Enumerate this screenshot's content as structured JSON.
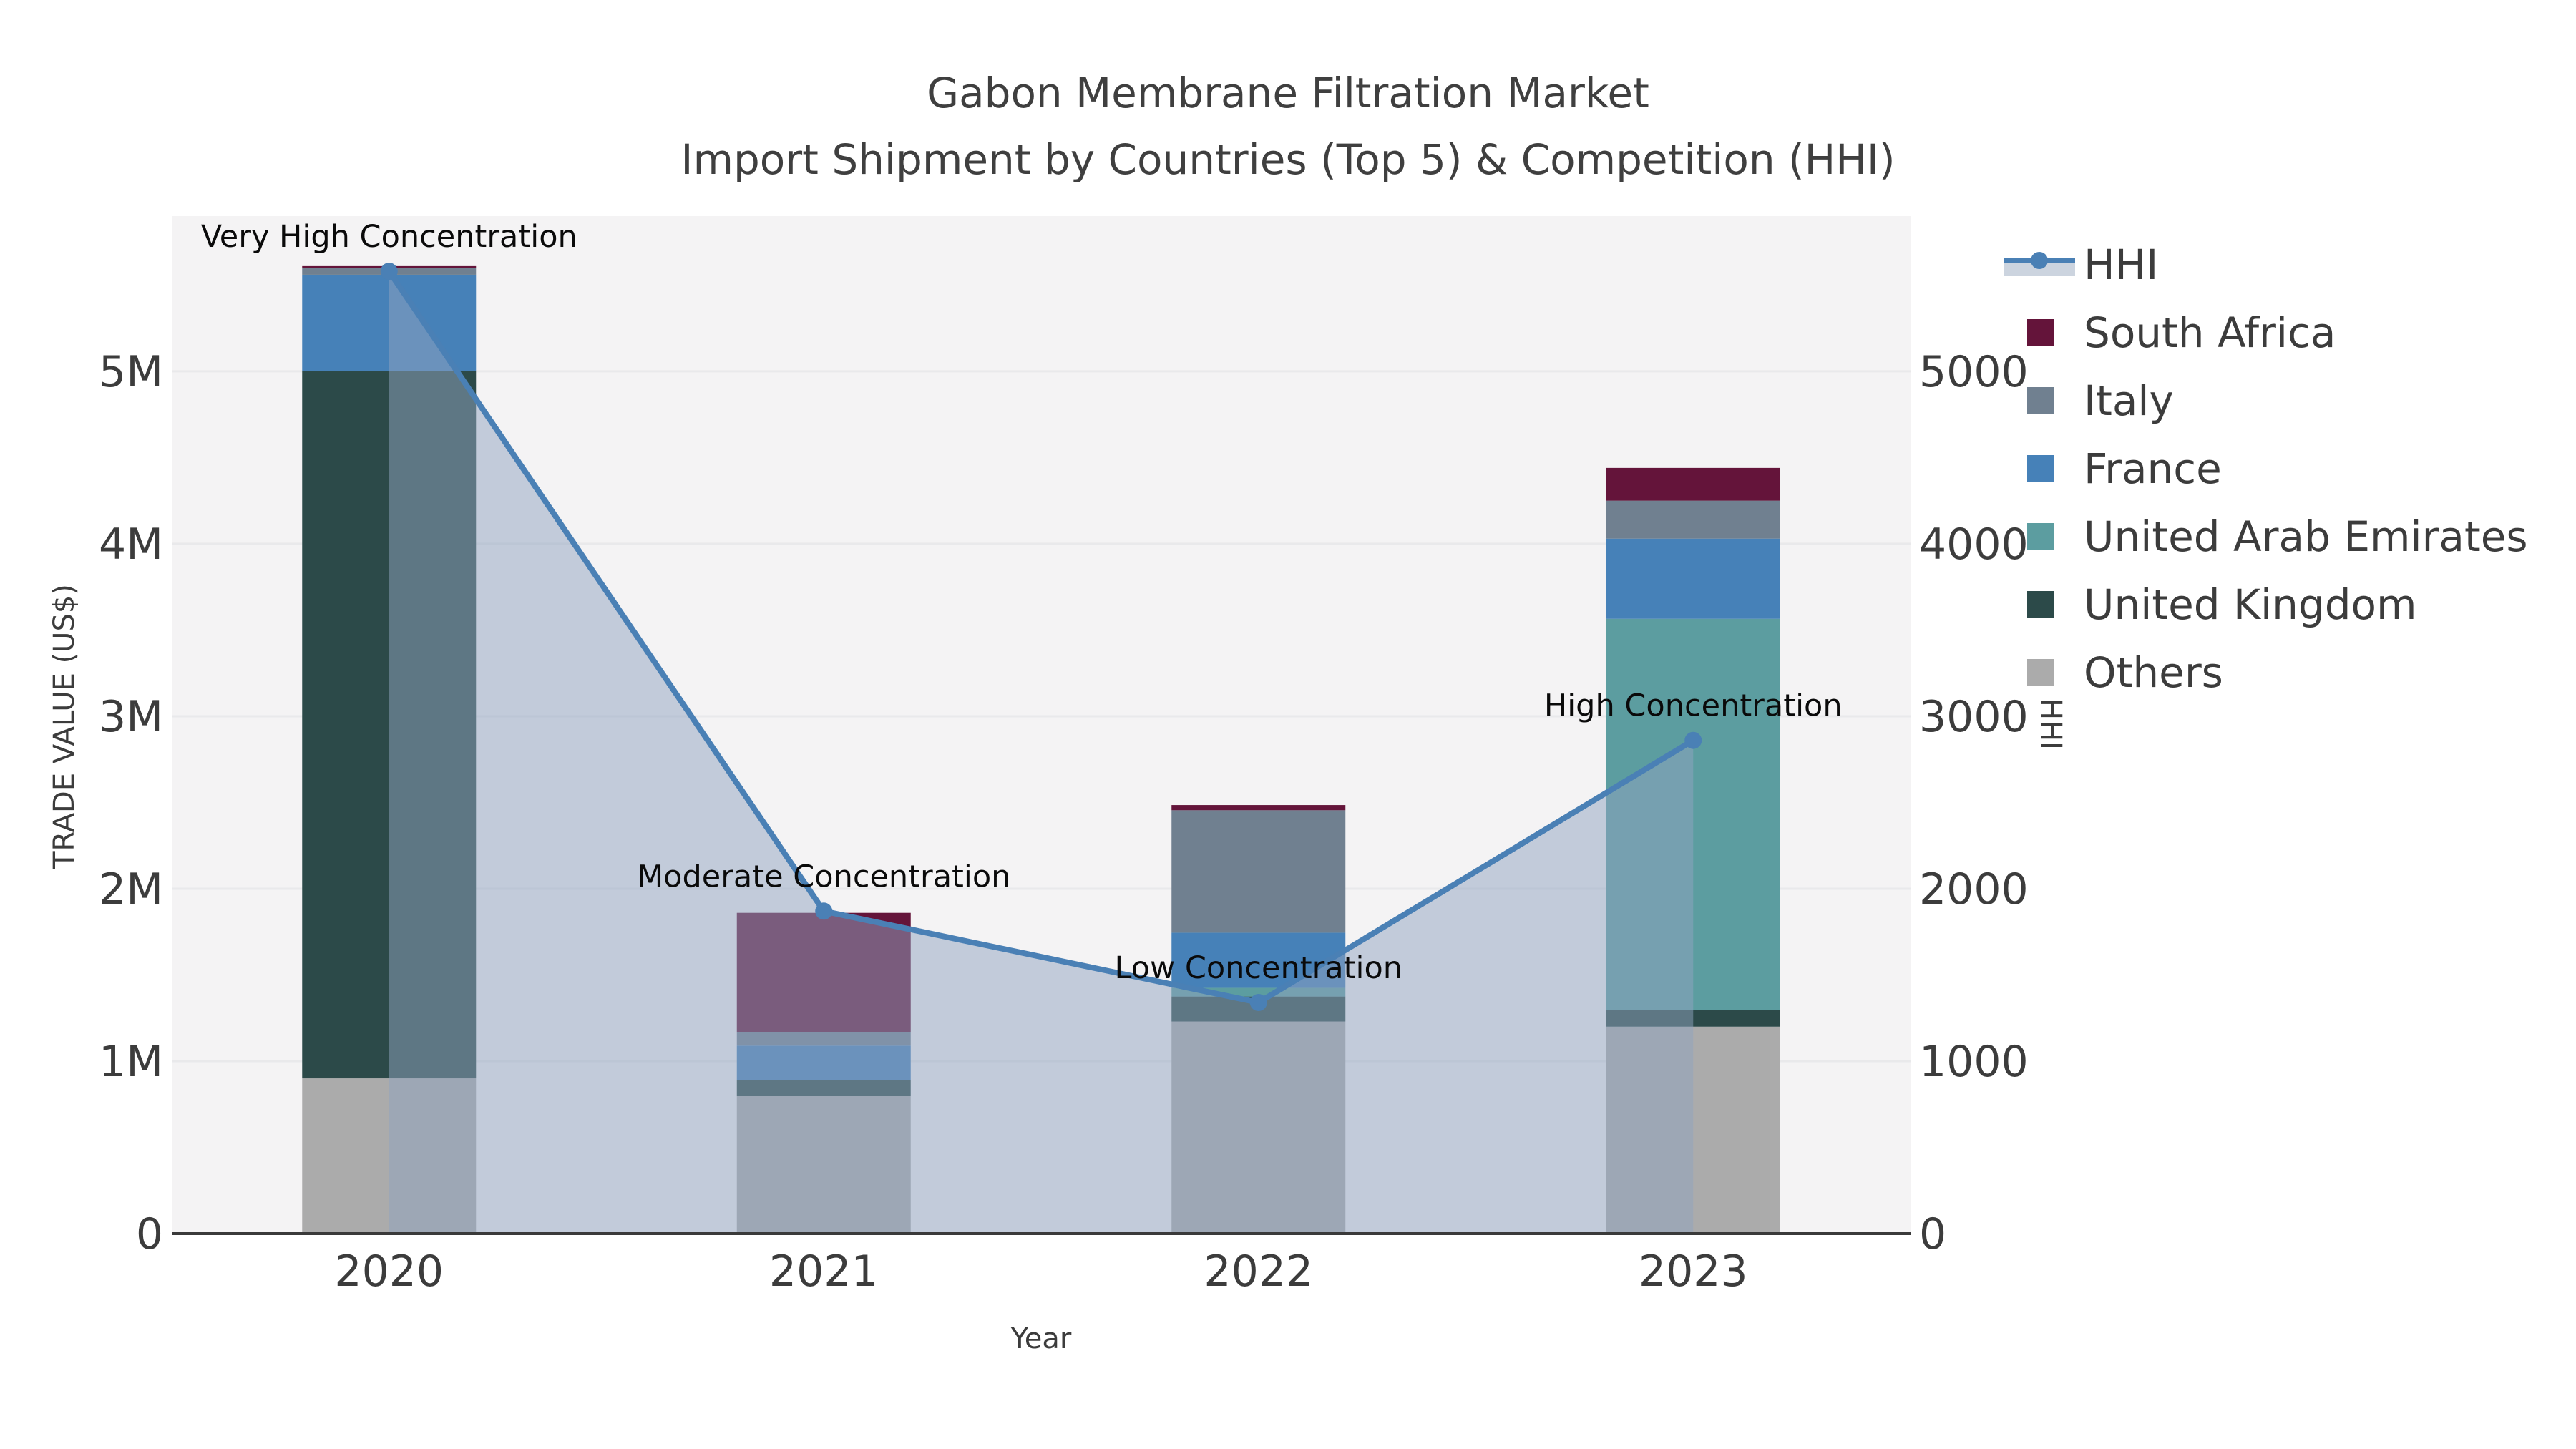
{
  "chart_data": {
    "type": "combo-stacked-bar-and-area-line",
    "title": "Gabon Membrane Filtration Market",
    "subtitle": "Import Shipment by Countries (Top 5) & Competition (HHI)",
    "xlabel": "Year",
    "ylabel_left": "TRADE VALUE (US$)",
    "ylabel_right": "HHI",
    "categories": [
      "2020",
      "2021",
      "2022",
      "2023"
    ],
    "bar_unit": "M US$",
    "ylim_left": [
      0,
      5.9
    ],
    "ylim_right": [
      0,
      5900
    ],
    "yticks_left": [
      "0",
      "1M",
      "2M",
      "3M",
      "4M",
      "5M"
    ],
    "yticks_right": [
      "0",
      "1000",
      "2000",
      "3000",
      "4000",
      "5000"
    ],
    "grid": "horizontal",
    "series": [
      {
        "name": "Others",
        "color": "#ababab",
        "values": [
          0.9,
          0.8,
          1.23,
          1.2
        ]
      },
      {
        "name": "United Kingdom",
        "color": "#2c4a49",
        "values": [
          4.1,
          0.09,
          0.145,
          0.095
        ]
      },
      {
        "name": "United Arab Emirates",
        "color": "#5c9da0",
        "values": [
          0.0,
          0.0,
          0.05,
          2.27
        ]
      },
      {
        "name": "France",
        "color": "#4681b8",
        "values": [
          0.56,
          0.2,
          0.32,
          0.465
        ]
      },
      {
        "name": "Italy",
        "color": "#708090",
        "values": [
          0.04,
          0.08,
          0.71,
          0.22
        ]
      },
      {
        "name": "South Africa",
        "color": "#64143a",
        "values": [
          0.01,
          0.69,
          0.03,
          0.19
        ]
      }
    ],
    "bar_totals": [
      5.61,
      1.86,
      2.485,
      4.44
    ],
    "hhi": {
      "name": "HHI",
      "values": [
        5580,
        1870,
        1340,
        2860
      ],
      "line_color": "#4a80b5",
      "area_fill": "rgba(144,163,192,0.5)",
      "legend_patch_color": "#ccd4df"
    },
    "annotations": [
      {
        "year": "2020",
        "label": "Very High Concentration"
      },
      {
        "year": "2021",
        "label": "Moderate Concentration"
      },
      {
        "year": "2022",
        "label": "Low Concentration"
      },
      {
        "year": "2023",
        "label": "High Concentration"
      }
    ],
    "legend": {
      "entries": [
        "HHI",
        "South Africa",
        "Italy",
        "France",
        "United Arab Emirates",
        "United Kingdom",
        "Others"
      ],
      "position": "right-top"
    },
    "colors": {
      "plot_background": "#f4f3f4",
      "figure_background": "#ffffff",
      "gridline": "#e9e9eb",
      "axis_line": "#3a3a3a",
      "tick_text": "#3c3c3c",
      "title_text": "#3f3f3f",
      "annotation_text": "#0a0a0a"
    }
  }
}
